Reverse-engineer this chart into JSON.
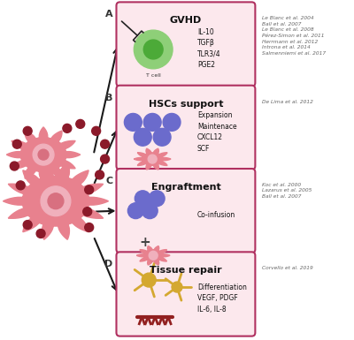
{
  "bg_color": "#ffffff",
  "box_bg": "#fce8ed",
  "box_border": "#b03060",
  "box_labels": [
    "A",
    "B",
    "C",
    "D"
  ],
  "box_titles": [
    "GVHD",
    "HSCs support",
    "Engraftment",
    "Tissue repair"
  ],
  "box_texts": [
    "IL-10\nTGFβ\nTLR3/4\nPGE2",
    "Expansion\nMaintenace\nCXCL12\nSCF",
    "Co-infusion",
    "Differentiation\nVEGF, PDGF\nIL-6, IL-8"
  ],
  "refs": [
    "Le Blanc et al. 2004\nBall et al. 2007\nLe Blanc et al. 2008\nPérez-Simon et al. 2011\nHerrmann et al. 2012\nIntrona et al. 2014\nSalmenniemi et al. 2017",
    "De Lima et al. 2012",
    "Koc et al. 2000\nLazarus et al. 2005\nBall et al. 2007",
    "Corvello et al. 2019"
  ],
  "arrow_color": "#1a1a1a",
  "msc_color": "#e8818e",
  "msc_nucleus_light": "#f0b0bc",
  "msc_nucleus_dark": "#d87080",
  "dot_color": "#8b1a2a",
  "t_cell_outer": "#8ecf78",
  "t_cell_inner": "#4caa38",
  "hsc_color": "#6b6bcc",
  "tissue_yellow": "#d4a830",
  "bone_color": "#922020"
}
